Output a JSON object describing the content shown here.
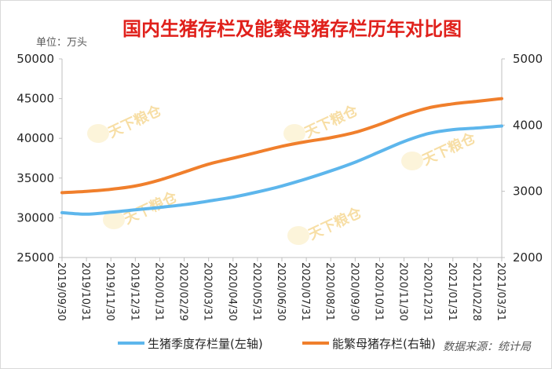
{
  "chart_data": {
    "type": "line",
    "title": "国内生猪存栏及能繁母猪存栏历年对比图",
    "unit_label": "单位：万头",
    "source": "数据来源：统计局",
    "watermark": "天下粮仓",
    "categories": [
      "2019/09/30",
      "2019/10/31",
      "2019/11/30",
      "2019/12/31",
      "2020/01/31",
      "2020/02/29",
      "2020/03/31",
      "2020/04/30",
      "2020/05/31",
      "2020/06/30",
      "2020/07/31",
      "2020/08/31",
      "2020/09/30",
      "2020/10/31",
      "2020/11/30",
      "2020/12/31",
      "2021/01/31",
      "2021/02/28",
      "2021/03/31"
    ],
    "y_left": {
      "ylim": [
        25000,
        50000
      ],
      "ticks": [
        "25000",
        "30000",
        "35000",
        "40000",
        "45000",
        "50000"
      ]
    },
    "y_right": {
      "ylim": [
        2000,
        5000
      ],
      "ticks": [
        "2000",
        "3000",
        "4000",
        "5000"
      ]
    },
    "series": [
      {
        "name": "生猪季度存栏量(左轴)",
        "axis": "left",
        "color": "#5db6ec",
        "values": [
          30650,
          30450,
          30700,
          31000,
          31300,
          31650,
          32100,
          32600,
          33250,
          34000,
          34900,
          35900,
          37000,
          38300,
          39600,
          40600,
          41100,
          41300,
          41550
        ]
      },
      {
        "name": "能繁母猪存栏(右轴)",
        "axis": "right",
        "color": "#f07f2c",
        "values": [
          2980,
          3000,
          3030,
          3080,
          3170,
          3290,
          3410,
          3500,
          3590,
          3680,
          3750,
          3810,
          3890,
          4010,
          4150,
          4260,
          4320,
          4360,
          4400
        ]
      }
    ],
    "legend_position": "bottom",
    "grid": false
  }
}
